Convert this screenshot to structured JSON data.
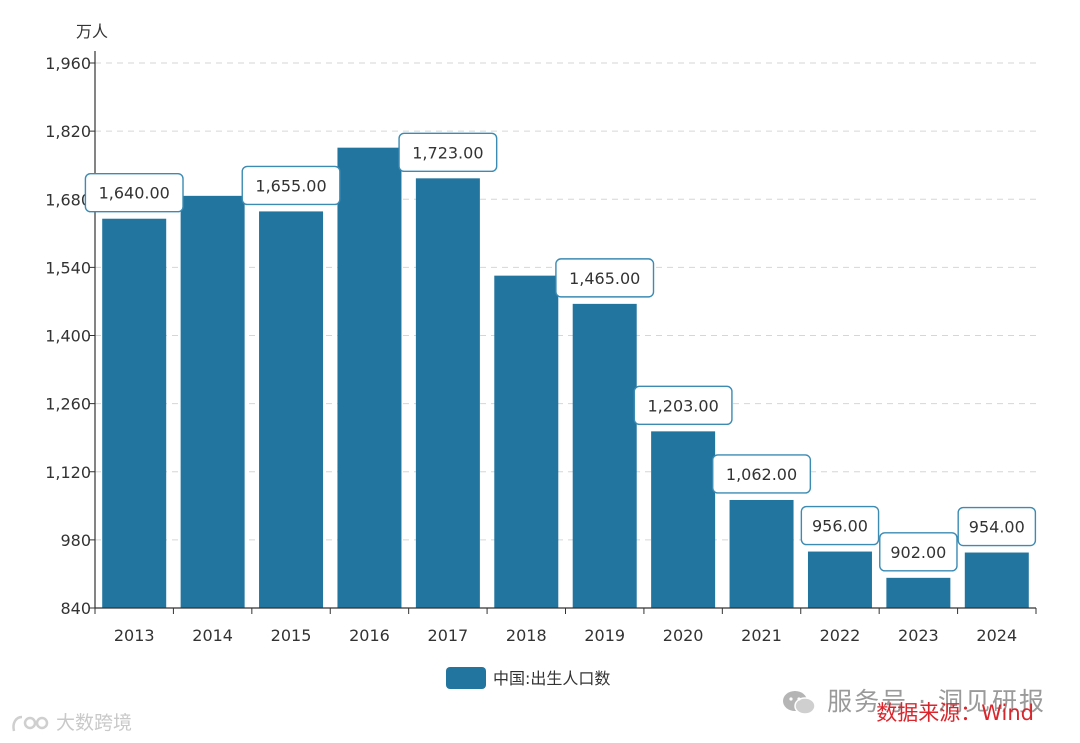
{
  "chart_data": {
    "type": "bar",
    "unit": "万人",
    "categories": [
      "2013",
      "2014",
      "2015",
      "2016",
      "2017",
      "2018",
      "2019",
      "2020",
      "2021",
      "2022",
      "2023",
      "2024"
    ],
    "series": [
      {
        "name": "中国:出生人口数",
        "color": "#21759f",
        "values": [
          1640,
          1687,
          1655,
          1786,
          1723,
          1523,
          1465,
          1203,
          1062,
          956,
          902,
          954
        ]
      }
    ],
    "data_labels": [
      {
        "category": "2013",
        "text": "1,640.00"
      },
      {
        "category": "2015",
        "text": "1,655.00"
      },
      {
        "category": "2017",
        "text": "1,723.00"
      },
      {
        "category": "2019",
        "text": "1,465.00"
      },
      {
        "category": "2020",
        "text": "1,203.00"
      },
      {
        "category": "2021",
        "text": "1,062.00"
      },
      {
        "category": "2022",
        "text": "956.00"
      },
      {
        "category": "2023",
        "text": "902.00"
      },
      {
        "category": "2024",
        "text": "954.00"
      }
    ],
    "ylim": [
      840,
      1960
    ],
    "yticks": [
      840,
      980,
      1120,
      1260,
      1400,
      1540,
      1680,
      1820,
      1960
    ],
    "ytick_labels": [
      "840",
      "980",
      "1,120",
      "1,260",
      "1,400",
      "1,540",
      "1,680",
      "1,820",
      "1,960"
    ],
    "grid": true,
    "legend_position": "bottom-center"
  },
  "watermarks": {
    "service": "服务号 · 洞见研报",
    "source": "数据来源：Wind",
    "brand": "大数跨境"
  }
}
